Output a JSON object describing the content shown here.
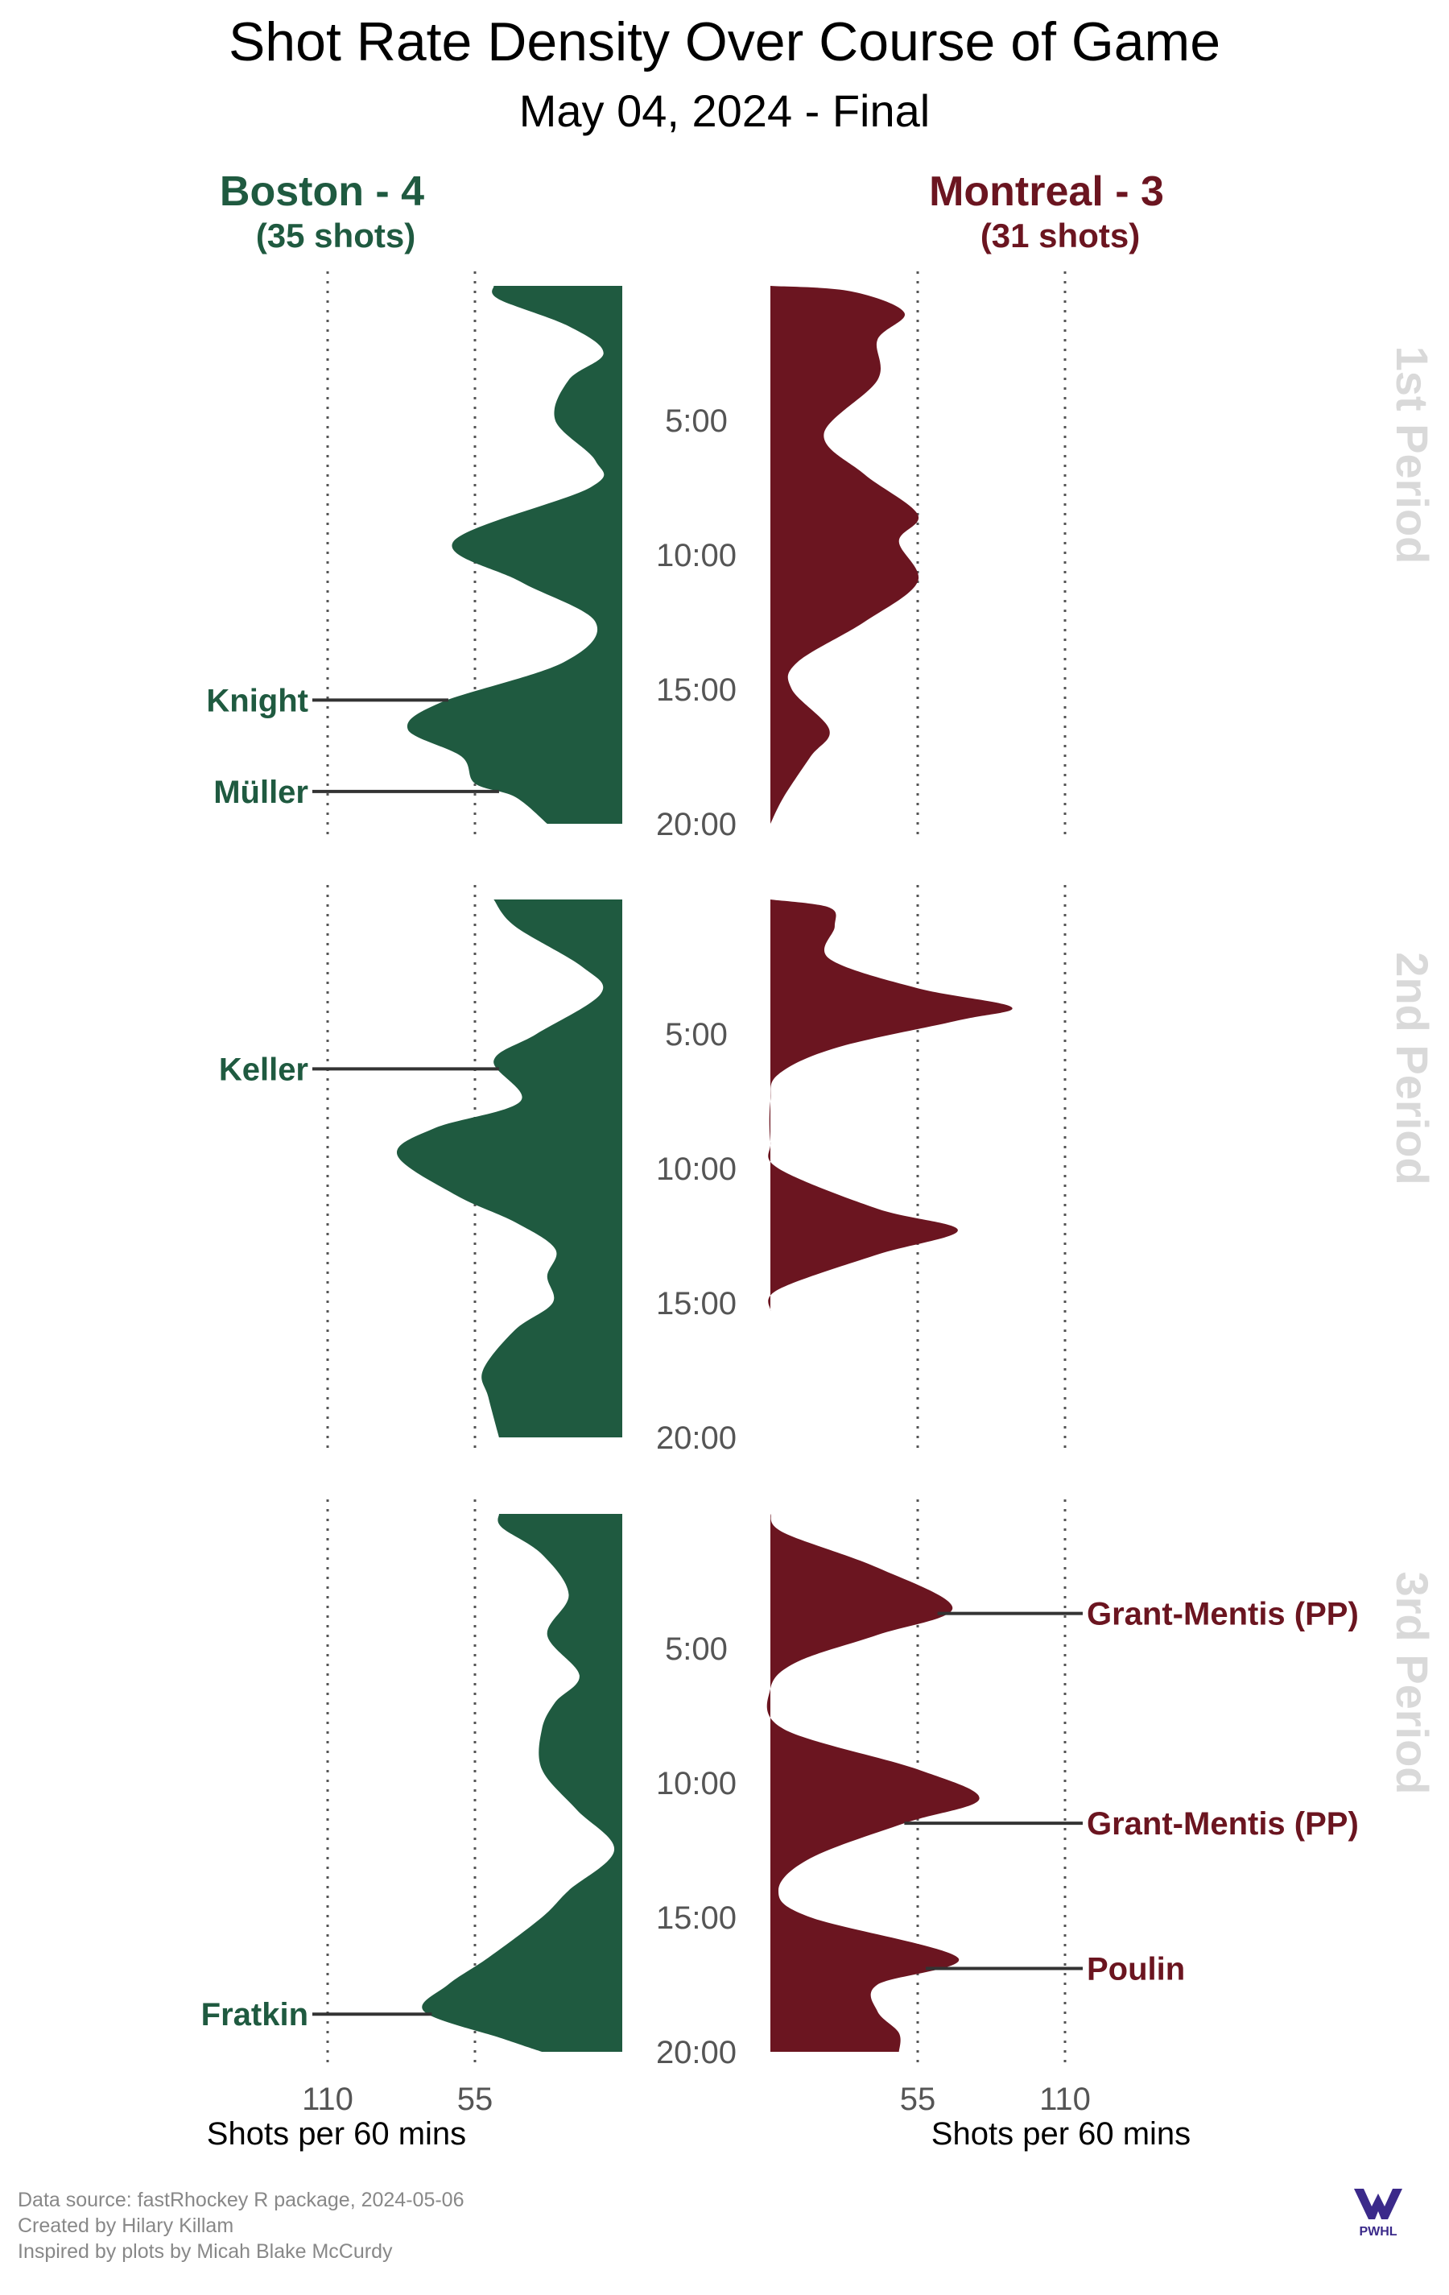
{
  "chart_data": {
    "type": "area",
    "title": "Shot Rate Density Over Course of Game",
    "subtitle": "May 04, 2024 - Final",
    "x_unit_label": "Shots per 60 mins",
    "x_ticks": [
      110,
      55
    ],
    "x_max": 110,
    "time_ticks": [
      "5:00",
      "10:00",
      "15:00",
      "20:00"
    ],
    "time_tick_values": [
      5,
      10,
      15,
      20
    ],
    "period_length": 20,
    "periods": [
      "1st Period",
      "2nd Period",
      "3rd Period"
    ],
    "teams": [
      {
        "side": "left",
        "name": "Boston - 4",
        "shots_label": "(35 shots)",
        "color": "#1f5a40",
        "series": [
          [
            [
              0,
              48
            ],
            [
              0.5,
              46
            ],
            [
              1.5,
              20
            ],
            [
              2.5,
              7
            ],
            [
              3.5,
              20
            ],
            [
              5,
              25
            ],
            [
              6.5,
              10
            ],
            [
              7.5,
              12
            ],
            [
              9.5,
              63
            ],
            [
              11,
              38
            ],
            [
              12.5,
              10
            ],
            [
              14,
              22
            ],
            [
              15.5,
              68
            ],
            [
              16.5,
              80
            ],
            [
              17.5,
              60
            ],
            [
              18.5,
              55
            ],
            [
              19,
              40
            ],
            [
              20,
              28
            ]
          ],
          [
            [
              0,
              48
            ],
            [
              1,
              40
            ],
            [
              2.5,
              15
            ],
            [
              3.5,
              8
            ],
            [
              5,
              32
            ],
            [
              6,
              48
            ],
            [
              7.5,
              38
            ],
            [
              8.5,
              70
            ],
            [
              9.5,
              84
            ],
            [
              11,
              62
            ],
            [
              12,
              40
            ],
            [
              13,
              25
            ],
            [
              14,
              28
            ],
            [
              15,
              26
            ],
            [
              16,
              40
            ],
            [
              17.5,
              52
            ],
            [
              18.5,
              50
            ],
            [
              20,
              46
            ]
          ],
          [
            [
              0,
              46
            ],
            [
              0.5,
              45
            ],
            [
              1.5,
              30
            ],
            [
              3,
              20
            ],
            [
              4.5,
              28
            ],
            [
              6,
              16
            ],
            [
              7,
              25
            ],
            [
              8,
              30
            ],
            [
              9.5,
              30
            ],
            [
              11,
              17
            ],
            [
              12.5,
              3
            ],
            [
              14,
              20
            ],
            [
              15,
              30
            ],
            [
              16.5,
              50
            ],
            [
              17.5,
              65
            ],
            [
              18.5,
              74
            ],
            [
              19.5,
              45
            ],
            [
              20,
              30
            ]
          ]
        ],
        "goals": [
          {
            "name": "Knight",
            "time": 15.4
          },
          {
            "name": "Müller",
            "time": 18.8
          },
          {
            "name": "Keller",
            "time": 6.3
          },
          {
            "name": "Fratkin",
            "time": 18.6
          }
        ],
        "goal_periods": [
          0,
          0,
          1,
          2
        ]
      },
      {
        "side": "right",
        "name": "Montreal - 3",
        "shots_label": "(31 shots)",
        "color": "#6b1520",
        "series": [
          [
            [
              0,
              0
            ],
            [
              0.2,
              30
            ],
            [
              1,
              50
            ],
            [
              2,
              40
            ],
            [
              3.5,
              40
            ],
            [
              5.5,
              20
            ],
            [
              7,
              35
            ],
            [
              8.5,
              55
            ],
            [
              9.5,
              48
            ],
            [
              11,
              55
            ],
            [
              12.5,
              35
            ],
            [
              14,
              10
            ],
            [
              15,
              8
            ],
            [
              16.5,
              22
            ],
            [
              17.5,
              15
            ],
            [
              19,
              5
            ],
            [
              20,
              0
            ]
          ],
          [
            [
              0,
              0
            ],
            [
              0.3,
              22
            ],
            [
              1,
              24
            ],
            [
              2.2,
              22
            ],
            [
              3.3,
              55
            ],
            [
              4,
              90
            ],
            [
              4.5,
              70
            ],
            [
              5.5,
              25
            ],
            [
              6.5,
              3
            ],
            [
              7.5,
              0
            ],
            [
              9,
              0
            ],
            [
              10,
              3
            ],
            [
              11.5,
              40
            ],
            [
              12.3,
              70
            ],
            [
              13.2,
              40
            ],
            [
              14.5,
              3
            ],
            [
              15.3,
              0
            ]
          ],
          [
            [
              0,
              0
            ],
            [
              0.7,
              5
            ],
            [
              2,
              40
            ],
            [
              3.5,
              68
            ],
            [
              4.5,
              40
            ],
            [
              5.5,
              10
            ],
            [
              6.5,
              0
            ],
            [
              8,
              5
            ],
            [
              9.5,
              55
            ],
            [
              10.6,
              78
            ],
            [
              11.5,
              50
            ],
            [
              12.8,
              15
            ],
            [
              14,
              3
            ],
            [
              15,
              15
            ],
            [
              16.5,
              70
            ],
            [
              17.5,
              40
            ],
            [
              18.5,
              40
            ],
            [
              19.3,
              48
            ],
            [
              20,
              48
            ]
          ]
        ],
        "goals": [
          {
            "name": "Grant-Mentis (PP)",
            "time": 3.7
          },
          {
            "name": "Grant-Mentis (PP)",
            "time": 11.5
          },
          {
            "name": "Poulin",
            "time": 16.9
          }
        ],
        "goal_periods": [
          2,
          2,
          2
        ]
      }
    ]
  },
  "footer": {
    "line1": "Data source: fastRhockey R package, 2024-05-06",
    "line2": "Created by Hilary Killam",
    "line3": "Inspired by plots by Micah Blake McCurdy"
  },
  "logo_text": "PWHL"
}
